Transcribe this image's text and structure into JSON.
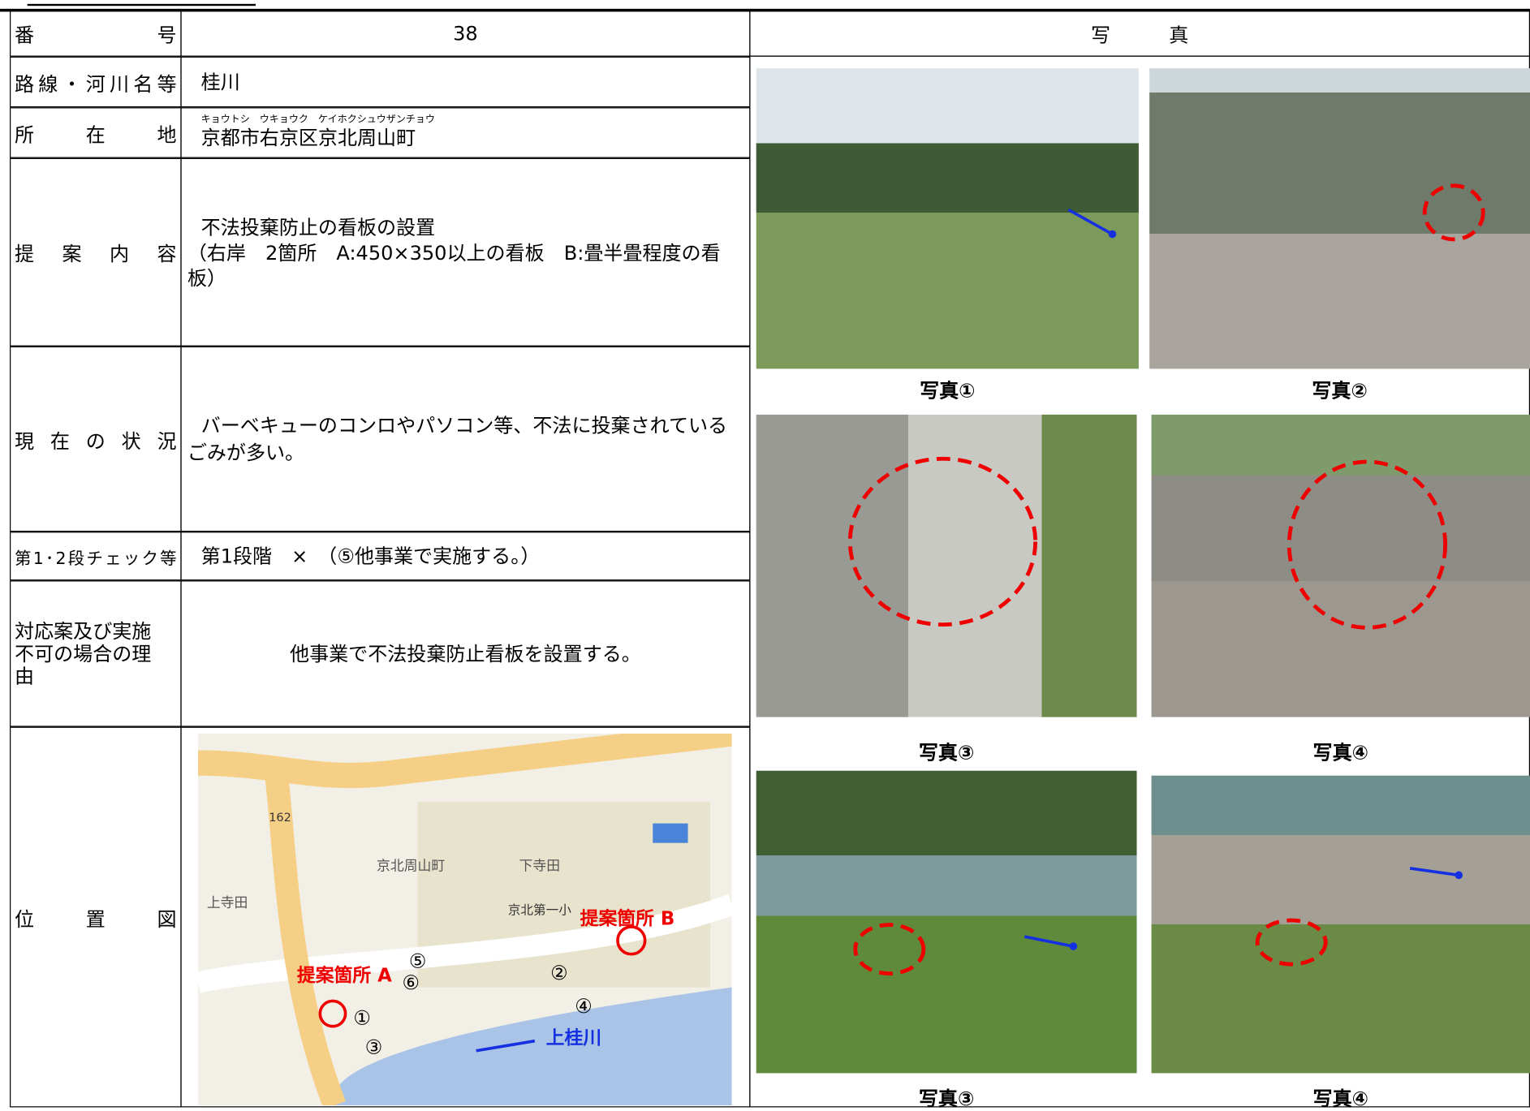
{
  "form": {
    "rows": [
      {
        "label": "番号",
        "value": "38"
      },
      {
        "label": "路線・河川名等",
        "value": "桂川"
      },
      {
        "label": "所在地",
        "reading": "キョウトシ　ウキョウク　ケイホクシュウザンチョウ",
        "value": "京都市右京区京北周山町"
      },
      {
        "label": "提案内容",
        "value": "不法投棄防止の看板の設置",
        "note": "（右岸　2箇所　A:450×350以上の看板　B:畳半畳程度の看板）"
      },
      {
        "label": "現在の状況",
        "value": "バーベキューのコンロやパソコン等、不法に投棄されているごみが多い。"
      },
      {
        "label": "第1･2段チェック等",
        "value": "第1段階　×　（⑤他事業で実施する。）"
      },
      {
        "label": "対応案及び実施不可の場合の理由",
        "value": "他事業で不法投棄防止看板を設置する。"
      },
      {
        "label": "位置図"
      }
    ],
    "photos_header": "写　　　真",
    "photos": [
      "写真①",
      "写真②",
      "写真③",
      "写真④",
      "写真③",
      "写真④"
    ],
    "map": {
      "labels": [
        "162",
        "京北周山町",
        "下寺田",
        "京北第一小",
        "上寺田",
        "提案箇所 A",
        "提案箇所 B",
        "上桂川",
        "①",
        "②",
        "③",
        "④",
        "⑤",
        "⑥"
      ]
    }
  }
}
